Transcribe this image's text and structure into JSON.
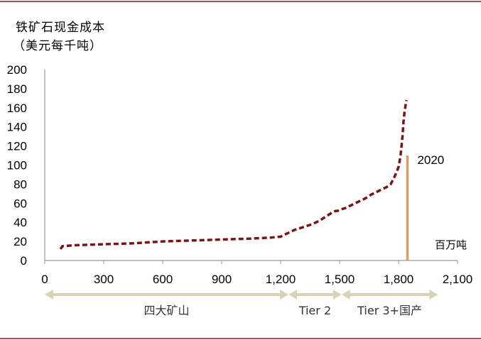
{
  "colors": {
    "frame": "#8b1a1a",
    "curve": "#7a1416",
    "marker": "#d4a06a",
    "band": "#d9d2b4",
    "axis": "#9a9a9a"
  },
  "chart_data": {
    "type": "line",
    "ylabel_line1": "铁矿石现金成本",
    "ylabel_line2": "（美元每千吨）",
    "xlabel": "百万吨",
    "xlim": [
      0,
      2100
    ],
    "ylim": [
      0,
      200
    ],
    "x_ticks": [
      0,
      300,
      600,
      900,
      1200,
      1500,
      1800,
      2100
    ],
    "x_tick_labels": [
      "0",
      "300",
      "600",
      "900",
      "1,200",
      "1,500",
      "1,800",
      "2,100"
    ],
    "y_ticks": [
      0,
      20,
      40,
      60,
      80,
      100,
      120,
      140,
      160,
      180,
      200
    ],
    "y_tick_labels": [
      "0",
      "20",
      "40",
      "60",
      "80",
      "100",
      "120",
      "140",
      "160",
      "180",
      "200"
    ],
    "series": [
      {
        "style": "dashed",
        "x": [
          80,
          90,
          150,
          300,
          450,
          600,
          750,
          900,
          1050,
          1150,
          1200,
          1230,
          1270,
          1300,
          1330,
          1360,
          1400,
          1430,
          1460,
          1480,
          1490,
          1500,
          1530,
          1560,
          1600,
          1630,
          1660,
          1700,
          1720,
          1740,
          1760,
          1780,
          1800,
          1810,
          1820,
          1825,
          1830,
          1835,
          1838,
          1840
        ],
        "y": [
          12,
          15,
          16,
          17,
          18,
          20,
          21,
          22,
          23,
          24,
          25,
          28,
          32,
          34,
          36,
          38,
          42,
          46,
          50,
          52,
          52,
          53,
          55,
          58,
          62,
          65,
          69,
          73,
          75,
          77,
          80,
          88,
          98,
          110,
          130,
          145,
          155,
          162,
          166,
          168
        ]
      }
    ],
    "annotations": [
      {
        "label": "2020",
        "x": 1845,
        "y_top": 110,
        "y_bottom": 0
      }
    ],
    "bands": [
      {
        "label": "四大矿山",
        "x_start": 0,
        "x_end": 1240
      },
      {
        "label": "Tier 2",
        "x_start": 1240,
        "x_end": 1510
      },
      {
        "label": "Tier 3+国产",
        "x_start": 1510,
        "x_end": 2000
      }
    ]
  }
}
